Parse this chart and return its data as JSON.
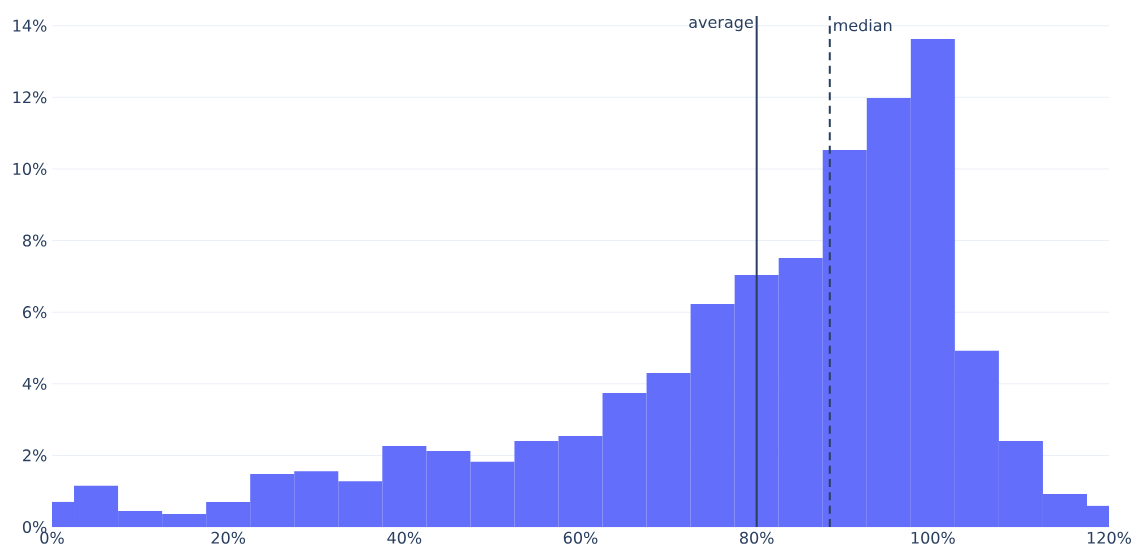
{
  "chart_data": {
    "type": "histogram",
    "bins": [
      0,
      2.5,
      7.5,
      12.5,
      17.5,
      22.5,
      27.5,
      32.5,
      37.5,
      42.5,
      47.5,
      52.5,
      57.5,
      62.5,
      67.5,
      72.5,
      77.5,
      82.5,
      87.5,
      92.5,
      97.5,
      102.5,
      107.5,
      112.5,
      117.5,
      120
    ],
    "values": [
      0.7,
      1.15,
      0.45,
      0.36,
      0.7,
      1.48,
      1.56,
      1.28,
      2.26,
      2.12,
      1.82,
      2.4,
      2.54,
      3.74,
      4.3,
      6.23,
      7.04,
      7.51,
      10.53,
      11.98,
      13.63,
      4.92,
      2.4,
      0.92,
      0.59
    ],
    "color": "#636efa",
    "xlim": [
      0,
      120
    ],
    "ylim": [
      0,
      14.27
    ],
    "xticks": [
      {
        "value": 0,
        "label": "0%"
      },
      {
        "value": 20,
        "label": "20%"
      },
      {
        "value": 40,
        "label": "40%"
      },
      {
        "value": 60,
        "label": "60%"
      },
      {
        "value": 80,
        "label": "80%"
      },
      {
        "value": 100,
        "label": "100%"
      },
      {
        "value": 120,
        "label": "120%"
      }
    ],
    "yticks": [
      {
        "value": 0,
        "label": "0%"
      },
      {
        "value": 2,
        "label": "2%"
      },
      {
        "value": 4,
        "label": "4%"
      },
      {
        "value": 6,
        "label": "6%"
      },
      {
        "value": 8,
        "label": "8%"
      },
      {
        "value": 10,
        "label": "10%"
      },
      {
        "value": 12,
        "label": "12%"
      },
      {
        "value": 14,
        "label": "14%"
      }
    ],
    "grid": "y",
    "ref_lines": [
      {
        "axis": "x",
        "value": 80,
        "label": "average",
        "color": "#2a3f5f",
        "line_style": "solid"
      },
      {
        "axis": "x",
        "value": 88.3,
        "label": "median",
        "color": "#2a3f5f",
        "line_style": "dashed"
      }
    ]
  }
}
